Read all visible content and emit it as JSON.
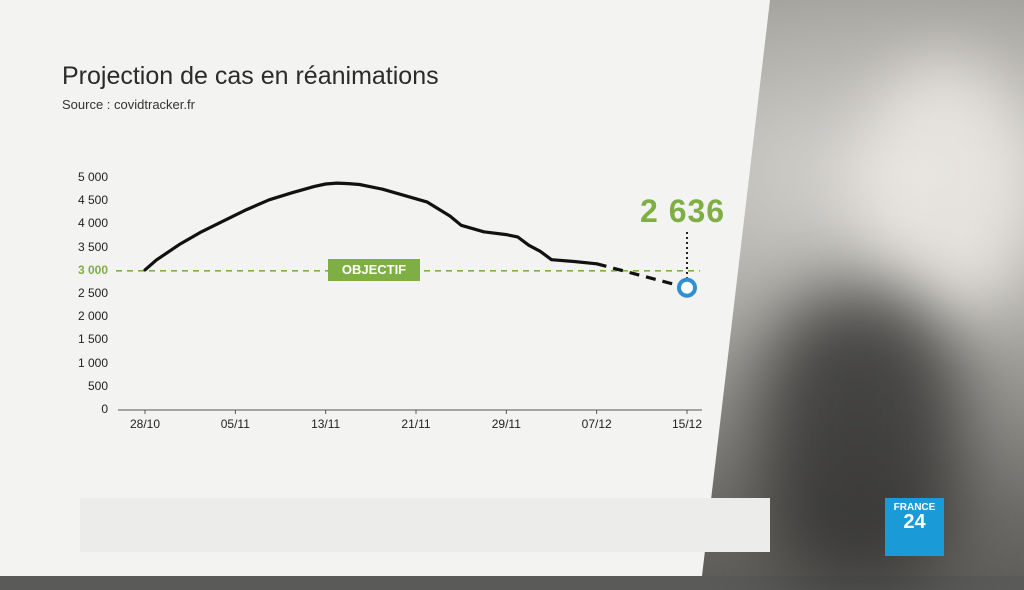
{
  "header": {
    "title": "Projection de cas en réanimations",
    "source": "Source : covidtracker.fr"
  },
  "annotations": {
    "objectif_label": "OBJECTIF",
    "projected_value": "2 636"
  },
  "logo": {
    "line1": "FRANCE",
    "line2": "24"
  },
  "colors": {
    "accent_green": "#7fae45",
    "projection_marker": "#2f8fd0",
    "line": "#111111"
  },
  "chart_data": {
    "type": "line",
    "title": "Projection de cas en réanimations",
    "ylim": [
      0,
      5000
    ],
    "yticks": [
      "5 000",
      "4 500",
      "4 000",
      "3 500",
      "3 000",
      "2 500",
      "2 000",
      "1 500",
      "1 000",
      "500",
      "0"
    ],
    "ytick_values": [
      5000,
      4500,
      4000,
      3500,
      3000,
      2500,
      2000,
      1500,
      1000,
      500,
      0
    ],
    "xticks": [
      "28/10",
      "05/11",
      "13/11",
      "21/11",
      "29/11",
      "07/12",
      "15/12"
    ],
    "x_start": "28/10",
    "x_end": "15/12",
    "reference_line": {
      "label": "OBJECTIF",
      "value": 3000
    },
    "series": [
      {
        "style": "solid",
        "points": [
          [
            "28/10",
            3020
          ],
          [
            "29/10",
            3230
          ],
          [
            "31/10",
            3560
          ],
          [
            "02/11",
            3840
          ],
          [
            "04/11",
            4080
          ],
          [
            "06/11",
            4320
          ],
          [
            "08/11",
            4530
          ],
          [
            "10/11",
            4680
          ],
          [
            "12/11",
            4820
          ],
          [
            "13/11",
            4870
          ],
          [
            "14/11",
            4890
          ],
          [
            "15/11",
            4880
          ],
          [
            "16/11",
            4860
          ],
          [
            "18/11",
            4760
          ],
          [
            "20/11",
            4620
          ],
          [
            "22/11",
            4480
          ],
          [
            "24/11",
            4180
          ],
          [
            "25/11",
            3980
          ],
          [
            "27/11",
            3840
          ],
          [
            "29/11",
            3780
          ],
          [
            "30/11",
            3730
          ],
          [
            "01/12",
            3550
          ],
          [
            "02/12",
            3420
          ],
          [
            "03/12",
            3240
          ],
          [
            "05/12",
            3200
          ],
          [
            "07/12",
            3150
          ]
        ]
      },
      {
        "style": "dashed",
        "points": [
          [
            "07/12",
            3150
          ],
          [
            "15/12",
            2636
          ]
        ]
      }
    ],
    "highlight_point": {
      "x": "15/12",
      "y": 2636,
      "label": "2 636"
    }
  }
}
